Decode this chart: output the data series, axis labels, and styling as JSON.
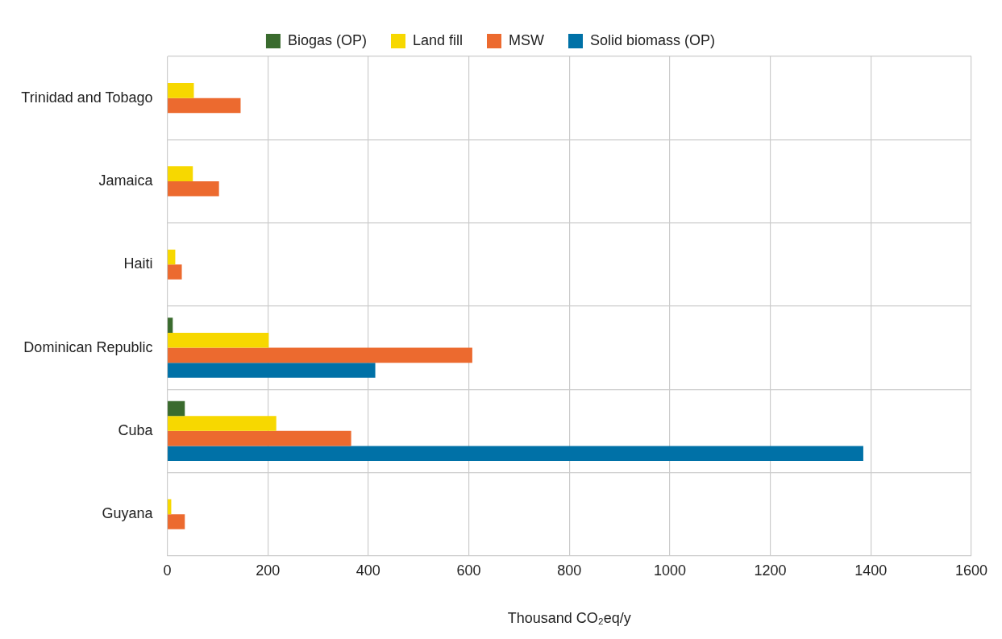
{
  "chart_data": {
    "type": "bar",
    "orientation": "horizontal",
    "xlabel": "Thousand CO₂eq/y",
    "categories": [
      "Trinidad and Tobago",
      "Jamaica",
      "Haiti",
      "Dominican Republic",
      "Cuba",
      "Guyana"
    ],
    "series": [
      {
        "name": "Biogas (OP)",
        "color": "#3a6b2e",
        "values": [
          null,
          null,
          null,
          11,
          35,
          null
        ]
      },
      {
        "name": "Land fill",
        "color": "#f7d800",
        "values": [
          53,
          51,
          16,
          202,
          217,
          8
        ]
      },
      {
        "name": "MSW",
        "color": "#ec6a2f",
        "values": [
          146,
          103,
          29,
          607,
          366,
          35
        ]
      },
      {
        "name": "Solid biomass (OP)",
        "color": "#0071a7",
        "values": [
          null,
          null,
          null,
          414,
          1385,
          null
        ]
      }
    ],
    "xlim": [
      0,
      1600
    ],
    "xticks": [
      0,
      200,
      400,
      600,
      800,
      1000,
      1200,
      1400,
      1600
    ],
    "grid": true,
    "legend": "top"
  }
}
